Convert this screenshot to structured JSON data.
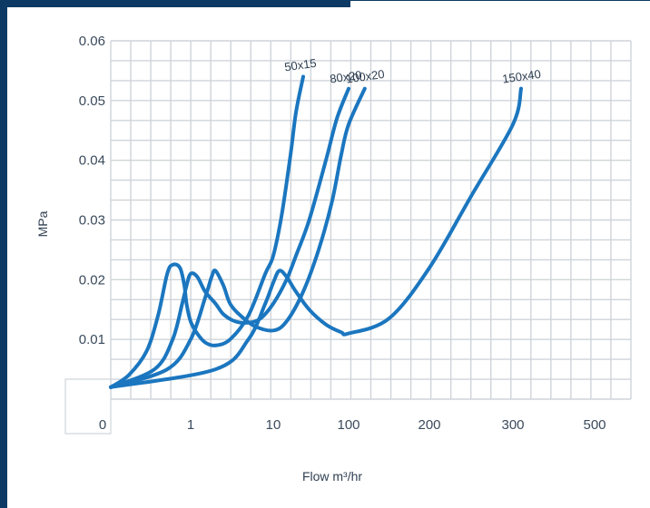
{
  "chart_data": {
    "type": "line",
    "xlabel": "Flow m³/hr",
    "ylabel": "MPa",
    "x_tick_labels": [
      "0",
      "1",
      "10",
      "100",
      "200",
      "300",
      "500"
    ],
    "y_tick_labels": [
      "0.01",
      "0.02",
      "0.03",
      "0.04",
      "0.05",
      "0.06"
    ],
    "ylim": [
      0,
      0.06
    ],
    "grid": true,
    "legend": "none",
    "series_color": "#1b76bf",
    "series": [
      {
        "name": "50x15",
        "x": [
          0,
          0.05,
          0.2,
          0.35,
          0.5,
          0.6,
          0.75,
          0.85,
          0.9,
          1.0,
          1.2,
          1.5,
          2,
          3,
          5,
          8,
          10,
          13,
          17,
          20,
          25
        ],
        "y": [
          0.002,
          0.004,
          0.008,
          0.014,
          0.021,
          0.0225,
          0.022,
          0.019,
          0.016,
          0.013,
          0.011,
          0.0095,
          0.009,
          0.01,
          0.014,
          0.021,
          0.024,
          0.031,
          0.041,
          0.048,
          0.054
        ]
      },
      {
        "name": "80x20",
        "x": [
          0,
          0.3,
          0.6,
          0.8,
          0.9,
          1.0,
          1.2,
          1.5,
          2,
          2.5,
          3.5,
          5,
          7,
          10,
          15,
          20,
          30,
          50,
          70,
          100
        ],
        "y": [
          0.002,
          0.005,
          0.01,
          0.016,
          0.019,
          0.021,
          0.0205,
          0.018,
          0.016,
          0.0142,
          0.013,
          0.0128,
          0.0135,
          0.016,
          0.02,
          0.024,
          0.03,
          0.04,
          0.047,
          0.052
        ]
      },
      {
        "name": "100x20",
        "x": [
          0,
          0.5,
          1,
          1.5,
          1.8,
          2.0,
          2.5,
          3,
          4,
          6,
          10,
          15,
          25,
          40,
          60,
          80,
          100,
          120
        ],
        "y": [
          0.002,
          0.005,
          0.01,
          0.017,
          0.0205,
          0.0215,
          0.019,
          0.016,
          0.014,
          0.0122,
          0.0115,
          0.013,
          0.018,
          0.025,
          0.033,
          0.041,
          0.046,
          0.052
        ]
      },
      {
        "name": "150x40",
        "x": [
          0,
          2,
          5,
          8,
          10,
          12,
          15,
          20,
          30,
          50,
          80,
          100,
          150,
          200,
          250,
          300,
          320
        ],
        "y": [
          0.002,
          0.005,
          0.01,
          0.016,
          0.0195,
          0.0215,
          0.0205,
          0.018,
          0.015,
          0.0125,
          0.0112,
          0.011,
          0.0135,
          0.022,
          0.034,
          0.046,
          0.052
        ]
      }
    ]
  }
}
